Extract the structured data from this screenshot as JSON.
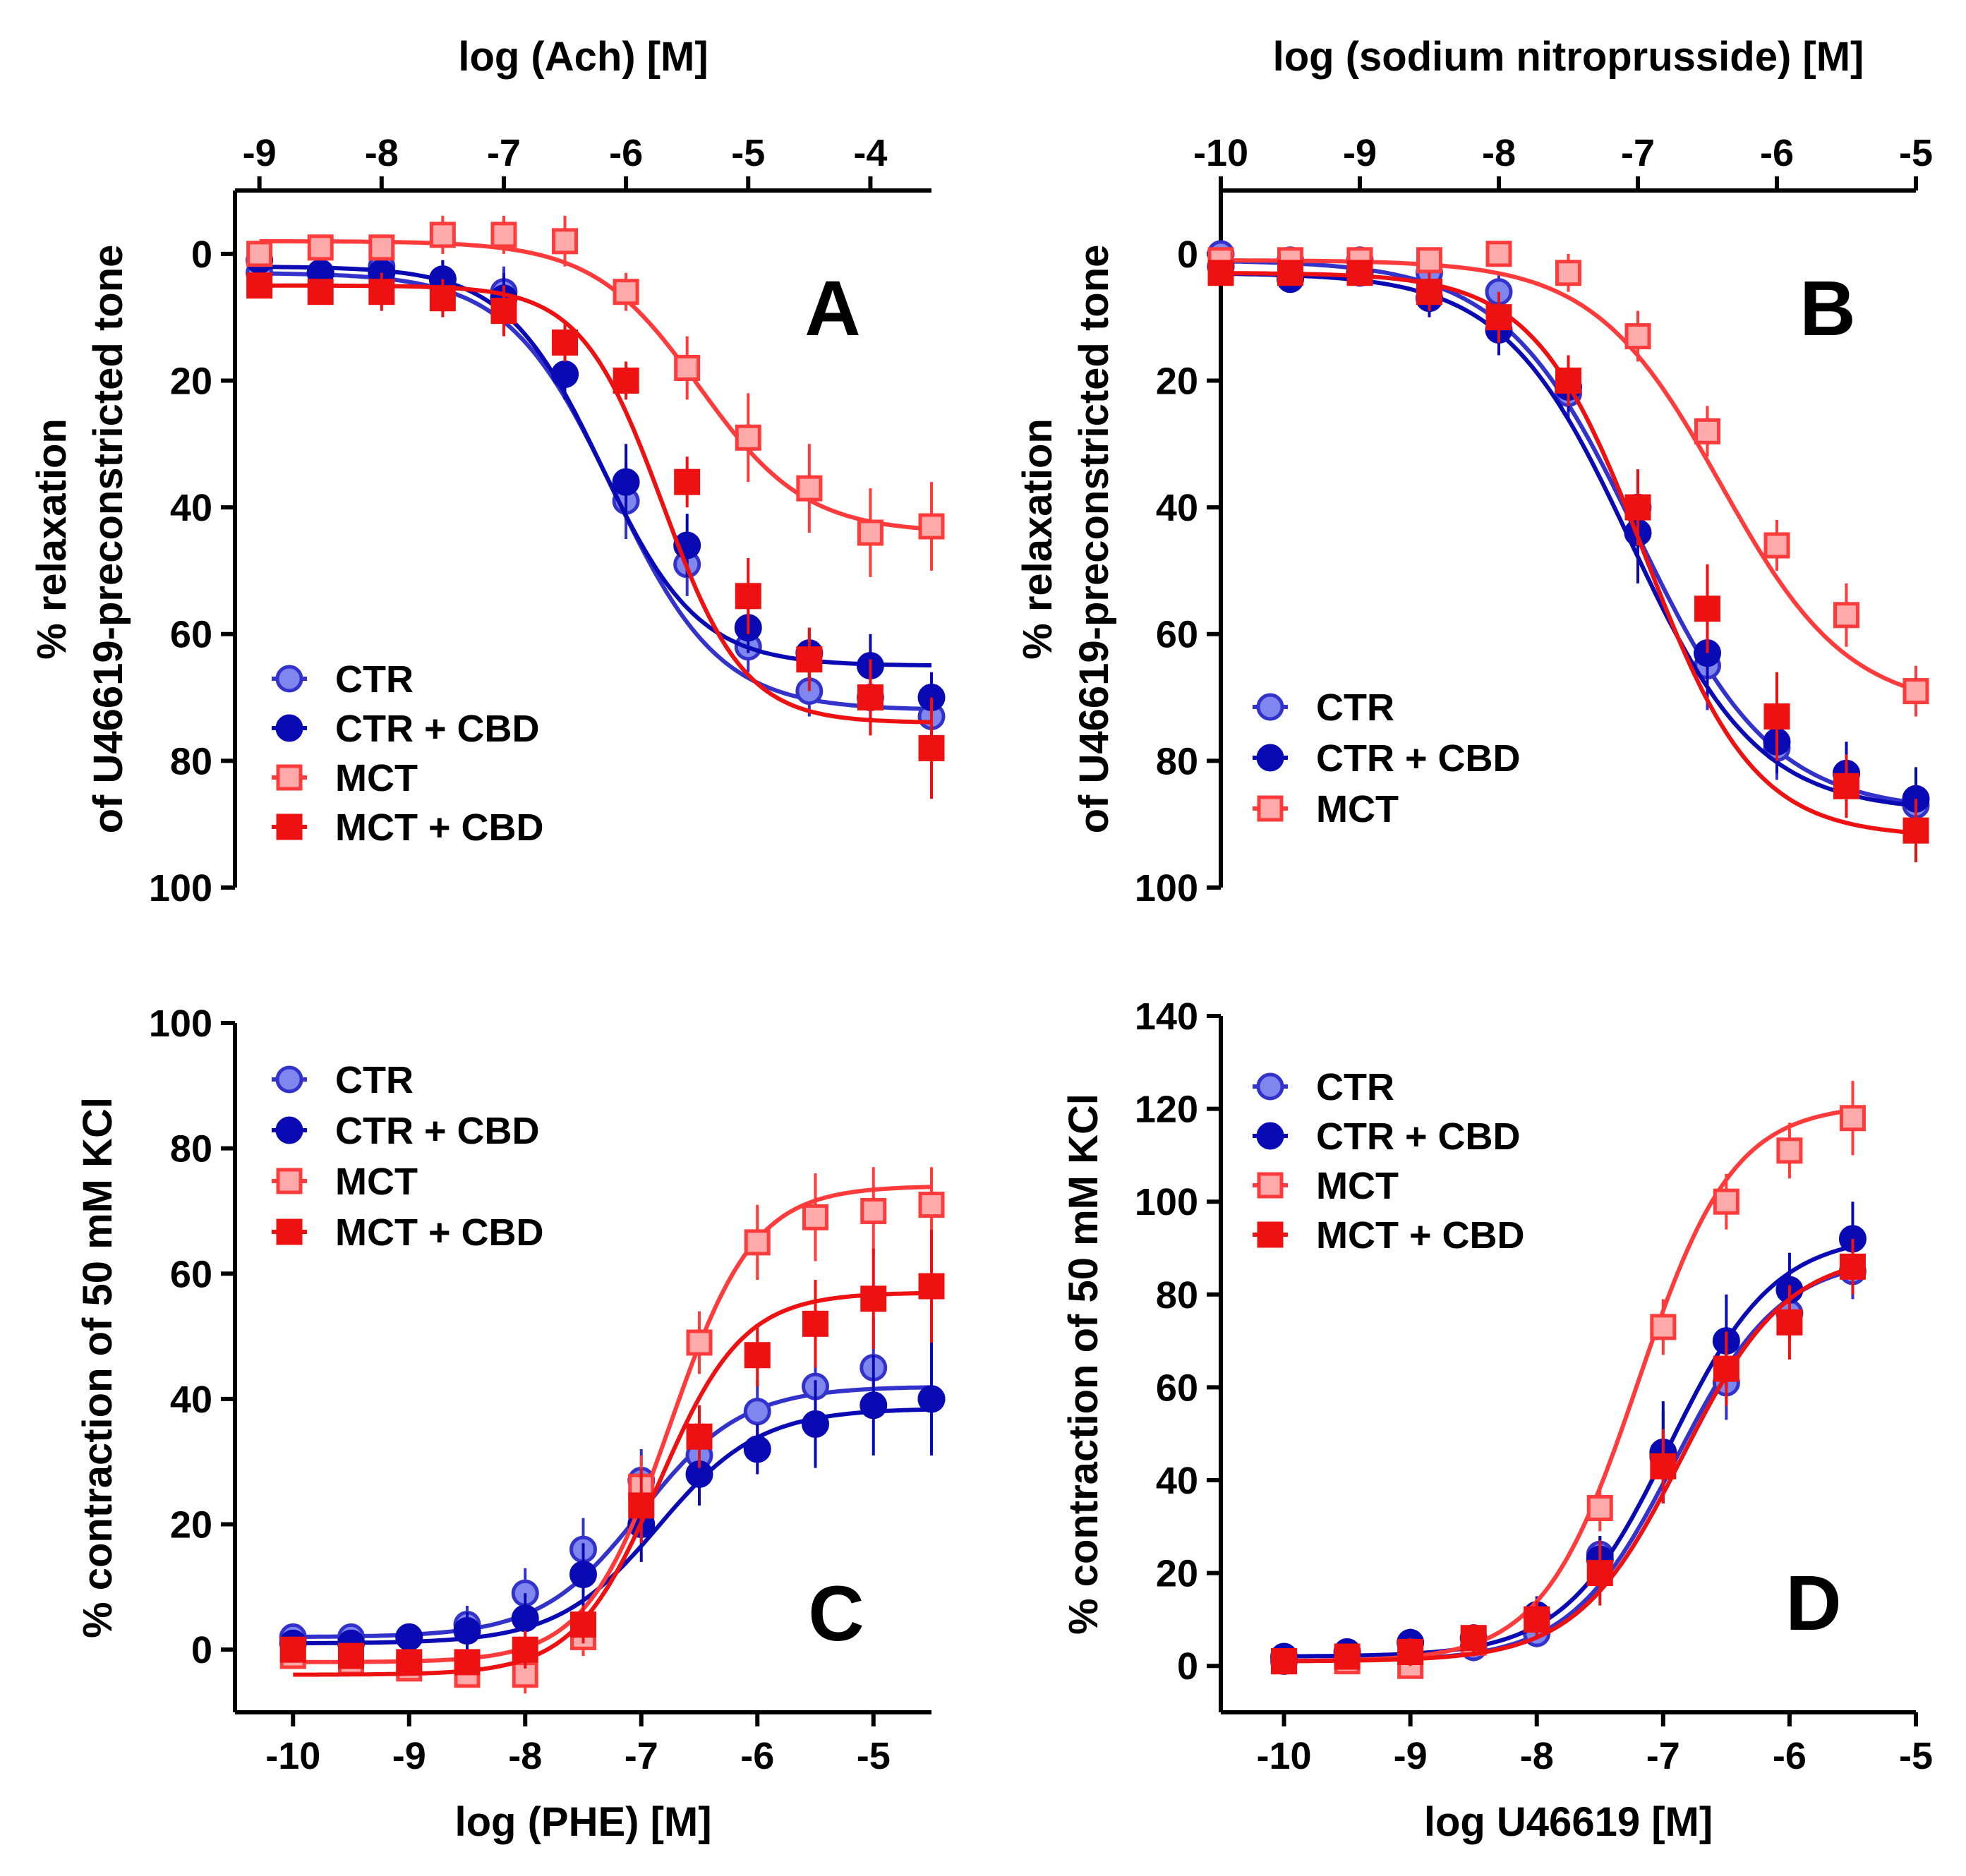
{
  "figure": {
    "panels": [
      "A",
      "B",
      "C",
      "D"
    ]
  },
  "legend_labels": {
    "ctr": "CTR",
    "ctr_cbd": "CTR + CBD",
    "mct": "MCT",
    "mct_cbd": "MCT + CBD"
  },
  "colors": {
    "ctr": "#3333cc",
    "ctr_fill": "#7f86ee",
    "ctr_cbd": "#0a0ab4",
    "mct": "#ff3b3b",
    "mct_fill": "#ffaaaa",
    "mct_cbd": "#ee1111"
  },
  "chart_data": [
    {
      "id": "A",
      "type": "line",
      "panel_label": "A",
      "title": "",
      "xlabel": "log (Ach) [M]",
      "xaxis_position": "top",
      "ylabel": [
        "% relaxation",
        "of U46619-preconstricted tone"
      ],
      "xlim": [
        -9.2,
        -3.5
      ],
      "ylim": [
        100,
        -10
      ],
      "y_inverted": true,
      "xticks": [
        -9,
        -8,
        -7,
        -6,
        -5,
        -4
      ],
      "xtick_labels": [
        "-9",
        "-8",
        "-7",
        "-6",
        "-5",
        "-4"
      ],
      "yticks": [
        0,
        20,
        40,
        60,
        80,
        100
      ],
      "ytick_labels": [
        "0",
        "20",
        "40",
        "60",
        "80",
        "100"
      ],
      "legend_position": "bottom-left",
      "series": [
        {
          "key": "ctr",
          "name": "CTR",
          "marker": "circle-open",
          "x": [
            -9,
            -8.5,
            -8,
            -7.5,
            -7,
            -6.5,
            -6,
            -5.5,
            -5,
            -4.5,
            -4,
            -3.5
          ],
          "y": [
            3,
            3,
            2,
            4,
            6,
            19,
            39,
            49,
            62,
            69,
            70,
            73
          ],
          "err": [
            2,
            2,
            3,
            3,
            4,
            4,
            6,
            5,
            4,
            4,
            5,
            4
          ],
          "fit": {
            "bottom": 3,
            "top": 72,
            "logec50": -6.1,
            "hill": 1.0
          }
        },
        {
          "key": "ctr_cbd",
          "name": "CTR + CBD",
          "marker": "circle-filled",
          "x": [
            -9,
            -8.5,
            -8,
            -7.5,
            -7,
            -6.5,
            -6,
            -5.5,
            -5,
            -4.5,
            -4,
            -3.5
          ],
          "y": [
            1,
            3,
            3,
            4,
            7,
            19,
            36,
            46,
            59,
            63,
            65,
            70
          ],
          "err": [
            2,
            2,
            3,
            3,
            4,
            4,
            6,
            5,
            4,
            4,
            5,
            4
          ],
          "fit": {
            "bottom": 2,
            "top": 65,
            "logec50": -6.2,
            "hill": 1.1
          }
        },
        {
          "key": "mct",
          "name": "MCT",
          "marker": "square-open",
          "x": [
            -9,
            -8.5,
            -8,
            -7.5,
            -7,
            -6.5,
            -6,
            -5.5,
            -5,
            -4.5,
            -4,
            -3.5
          ],
          "y": [
            0,
            -1,
            -1,
            -3,
            -3,
            -2,
            6,
            18,
            29,
            37,
            44,
            43
          ],
          "err": [
            2,
            2,
            2,
            3,
            3,
            4,
            3,
            5,
            7,
            7,
            7,
            7
          ],
          "fit": {
            "bottom": -2,
            "top": 44,
            "logec50": -5.4,
            "hill": 1.0
          }
        },
        {
          "key": "mct_cbd",
          "name": "MCT + CBD",
          "marker": "square-filled",
          "x": [
            -9,
            -8.5,
            -8,
            -7.5,
            -7,
            -6.5,
            -6,
            -5.5,
            -5,
            -4.5,
            -4,
            -3.5
          ],
          "y": [
            5,
            6,
            6,
            7,
            9,
            14,
            20,
            36,
            54,
            64,
            70,
            78
          ],
          "err": [
            2,
            2,
            3,
            3,
            4,
            3,
            3,
            4,
            6,
            5,
            6,
            8
          ],
          "fit": {
            "bottom": 5,
            "top": 74,
            "logec50": -5.7,
            "hill": 1.3
          }
        }
      ]
    },
    {
      "id": "B",
      "type": "line",
      "panel_label": "B",
      "title": "",
      "xlabel": "log (sodium nitroprusside) [M]",
      "xaxis_position": "top",
      "ylabel": [
        "% relaxation",
        "of U46619-preconstricted tone"
      ],
      "xlim": [
        -10,
        -5
      ],
      "ylim": [
        100,
        -10
      ],
      "y_inverted": true,
      "xticks": [
        -10,
        -9,
        -8,
        -7,
        -6,
        -5
      ],
      "xtick_labels": [
        "-10",
        "-9",
        "-8",
        "-7",
        "-6",
        "-5"
      ],
      "yticks": [
        0,
        20,
        40,
        60,
        80,
        100
      ],
      "ytick_labels": [
        "0",
        "20",
        "40",
        "60",
        "80",
        "100"
      ],
      "legend_position": "bottom-left",
      "series": [
        {
          "key": "ctr",
          "name": "CTR",
          "marker": "circle-open",
          "x": [
            -10,
            -9.5,
            -9,
            -8.5,
            -8,
            -7.5,
            -7,
            -6.5,
            -6,
            -5.5,
            -5
          ],
          "y": [
            0,
            1,
            1,
            3,
            6,
            22,
            40,
            65,
            78,
            82,
            87
          ],
          "err": [
            2,
            2,
            2,
            3,
            3,
            4,
            6,
            7,
            5,
            5,
            5
          ],
          "fit": {
            "bottom": 1,
            "top": 88,
            "logec50": -7.0,
            "hill": 0.9
          }
        },
        {
          "key": "ctr_cbd",
          "name": "CTR + CBD",
          "marker": "circle-filled",
          "x": [
            -10,
            -9.5,
            -9,
            -8.5,
            -8,
            -7.5,
            -7,
            -6.5,
            -6,
            -5.5,
            -5
          ],
          "y": [
            2,
            4,
            3,
            7,
            12,
            21,
            44,
            63,
            77,
            82,
            86
          ],
          "err": [
            2,
            2,
            2,
            3,
            4,
            4,
            8,
            7,
            5,
            5,
            5
          ],
          "fit": {
            "bottom": 3,
            "top": 88,
            "logec50": -7.05,
            "hill": 0.95
          }
        },
        {
          "key": "mct",
          "name": "MCT",
          "marker": "square-open",
          "x": [
            -10,
            -9.5,
            -9,
            -8.5,
            -8,
            -7.5,
            -7,
            -6.5,
            -6,
            -5.5,
            -5
          ],
          "y": [
            1,
            1,
            1,
            1,
            0,
            3,
            13,
            28,
            46,
            57,
            69
          ],
          "err": [
            2,
            2,
            2,
            2,
            2,
            3,
            4,
            4,
            4,
            5,
            4
          ],
          "fit": {
            "bottom": 1,
            "top": 72,
            "logec50": -6.4,
            "hill": 0.95
          }
        },
        {
          "key": "mct_cbd",
          "name": "MCT + CBD",
          "marker": "square-filled",
          "x": [
            -10,
            -9.5,
            -9,
            -8.5,
            -8,
            -7.5,
            -7,
            -6.5,
            -6,
            -5.5,
            -5
          ],
          "y": [
            3,
            3,
            3,
            6,
            10,
            20,
            40,
            56,
            73,
            84,
            91
          ],
          "err": [
            2,
            2,
            2,
            3,
            4,
            4,
            6,
            7,
            7,
            5,
            5
          ],
          "fit": {
            "bottom": 3,
            "top": 92,
            "logec50": -6.95,
            "hill": 1.1
          }
        }
      ],
      "legend_keys": [
        "ctr",
        "ctr_cbd",
        "mct"
      ]
    },
    {
      "id": "C",
      "type": "line",
      "panel_label": "C",
      "title": "",
      "xlabel": "log (PHE) [M]",
      "xaxis_position": "bottom",
      "ylabel": [
        "% contraction of 50 mM KCl"
      ],
      "xlim": [
        -10.5,
        -4.5
      ],
      "ylim": [
        -10,
        100
      ],
      "y_inverted": false,
      "xticks": [
        -10,
        -9,
        -8,
        -7,
        -6,
        -5
      ],
      "xtick_labels": [
        "-10",
        "-9",
        "-8",
        "-7",
        "-6",
        "-5"
      ],
      "yticks": [
        0,
        20,
        40,
        60,
        80,
        100
      ],
      "ytick_labels": [
        "0",
        "20",
        "40",
        "60",
        "80",
        "100"
      ],
      "legend_position": "top-left",
      "series": [
        {
          "key": "ctr",
          "name": "CTR",
          "marker": "circle-open",
          "x": [
            -10,
            -9.5,
            -9,
            -8.5,
            -8,
            -7.5,
            -7,
            -6.5,
            -6,
            -5.5,
            -5,
            -4.5
          ],
          "y": [
            2,
            2,
            2,
            4,
            9,
            16,
            27,
            31,
            38,
            42,
            45,
            40
          ],
          "err": [
            2,
            2,
            2,
            3,
            4,
            5,
            5,
            5,
            5,
            7,
            8,
            9
          ],
          "fit": {
            "bottom": 2,
            "top": 42,
            "logec50": -7.0,
            "hill": 1.0
          }
        },
        {
          "key": "ctr_cbd",
          "name": "CTR + CBD",
          "marker": "circle-filled",
          "x": [
            -10,
            -9.5,
            -9,
            -8.5,
            -8,
            -7.5,
            -7,
            -6.5,
            -6,
            -5.5,
            -5,
            -4.5
          ],
          "y": [
            1,
            1,
            2,
            3,
            5,
            12,
            20,
            28,
            32,
            36,
            39,
            40
          ],
          "err": [
            2,
            2,
            2,
            3,
            4,
            5,
            6,
            5,
            4,
            7,
            8,
            9
          ],
          "fit": {
            "bottom": 1,
            "top": 38.5,
            "logec50": -6.85,
            "hill": 1.0
          }
        },
        {
          "key": "mct",
          "name": "MCT",
          "marker": "square-open",
          "x": [
            -10,
            -9.5,
            -9,
            -8.5,
            -8,
            -7.5,
            -7,
            -6.5,
            -6,
            -5.5,
            -5,
            -4.5
          ],
          "y": [
            -1,
            -2,
            -3,
            -4,
            -4,
            2,
            26,
            49,
            65,
            69,
            70,
            71
          ],
          "err": [
            2,
            2,
            2,
            2,
            3,
            3,
            5,
            5,
            6,
            7,
            7,
            6
          ],
          "fit": {
            "bottom": -2,
            "top": 74,
            "logec50": -6.75,
            "hill": 1.2
          }
        },
        {
          "key": "mct_cbd",
          "name": "MCT + CBD",
          "marker": "square-filled",
          "x": [
            -10,
            -9.5,
            -9,
            -8.5,
            -8,
            -7.5,
            -7,
            -6.5,
            -6,
            -5.5,
            -5,
            -4.5
          ],
          "y": [
            0,
            -1,
            -2,
            -2,
            0,
            4,
            23,
            34,
            47,
            52,
            56,
            58
          ],
          "err": [
            2,
            2,
            2,
            2,
            3,
            3,
            6,
            5,
            5,
            7,
            8,
            9
          ],
          "fit": {
            "bottom": -4,
            "top": 57,
            "logec50": -6.85,
            "hill": 1.2
          }
        }
      ]
    },
    {
      "id": "D",
      "type": "line",
      "panel_label": "D",
      "title": "",
      "xlabel": "log U46619 [M]",
      "xaxis_position": "bottom",
      "ylabel": [
        "% contraction of 50 mM KCl"
      ],
      "xlim": [
        -10.5,
        -5
      ],
      "ylim": [
        -10,
        140
      ],
      "y_inverted": false,
      "xticks": [
        -10,
        -9,
        -8,
        -7,
        -6,
        -5
      ],
      "xtick_labels": [
        "-10",
        "-9",
        "-8",
        "-7",
        "-6",
        "-5"
      ],
      "yticks": [
        0,
        20,
        40,
        60,
        80,
        100,
        120,
        140
      ],
      "ytick_labels": [
        "0",
        "20",
        "40",
        "60",
        "80",
        "100",
        "120",
        "140"
      ],
      "legend_position": "top-left",
      "series": [
        {
          "key": "ctr",
          "name": "CTR",
          "marker": "circle-open",
          "x": [
            -10,
            -9.5,
            -9,
            -8.5,
            -8,
            -7.5,
            -7,
            -6.5,
            -6,
            -5.5
          ],
          "y": [
            1,
            2,
            2,
            4,
            7,
            24,
            45,
            61,
            76,
            85
          ],
          "err": [
            2,
            2,
            2,
            3,
            3,
            4,
            10,
            8,
            6,
            6
          ],
          "fit": {
            "bottom": 1,
            "top": 88,
            "logec50": -6.9,
            "hill": 1.05
          }
        },
        {
          "key": "ctr_cbd",
          "name": "CTR + CBD",
          "marker": "circle-filled",
          "x": [
            -10,
            -9.5,
            -9,
            -8.5,
            -8,
            -7.5,
            -7,
            -6.5,
            -6,
            -5.5
          ],
          "y": [
            2,
            3,
            5,
            6,
            11,
            23,
            46,
            70,
            81,
            92
          ],
          "err": [
            2,
            2,
            3,
            3,
            4,
            5,
            11,
            10,
            8,
            8
          ],
          "fit": {
            "bottom": 2,
            "top": 93,
            "logec50": -6.95,
            "hill": 1.05
          }
        },
        {
          "key": "mct",
          "name": "MCT",
          "marker": "square-open",
          "x": [
            -10,
            -9.5,
            -9,
            -8.5,
            -8,
            -7.5,
            -7,
            -6.5,
            -6,
            -5.5
          ],
          "y": [
            1,
            1,
            0,
            5,
            10,
            34,
            73,
            100,
            111,
            118
          ],
          "err": [
            2,
            2,
            2,
            3,
            4,
            5,
            6,
            6,
            6,
            8
          ],
          "fit": {
            "bottom": 1,
            "top": 121,
            "logec50": -7.2,
            "hill": 1.15
          }
        },
        {
          "key": "mct_cbd",
          "name": "MCT + CBD",
          "marker": "square-filled",
          "x": [
            -10,
            -9.5,
            -9,
            -8.5,
            -8,
            -7.5,
            -7,
            -6.5,
            -6,
            -5.5
          ],
          "y": [
            1,
            2,
            3,
            6,
            10,
            20,
            43,
            64,
            74,
            86
          ],
          "err": [
            2,
            2,
            3,
            3,
            4,
            7,
            8,
            8,
            8,
            6
          ],
          "fit": {
            "bottom": 1,
            "top": 89,
            "logec50": -6.85,
            "hill": 1.05
          }
        }
      ]
    }
  ]
}
